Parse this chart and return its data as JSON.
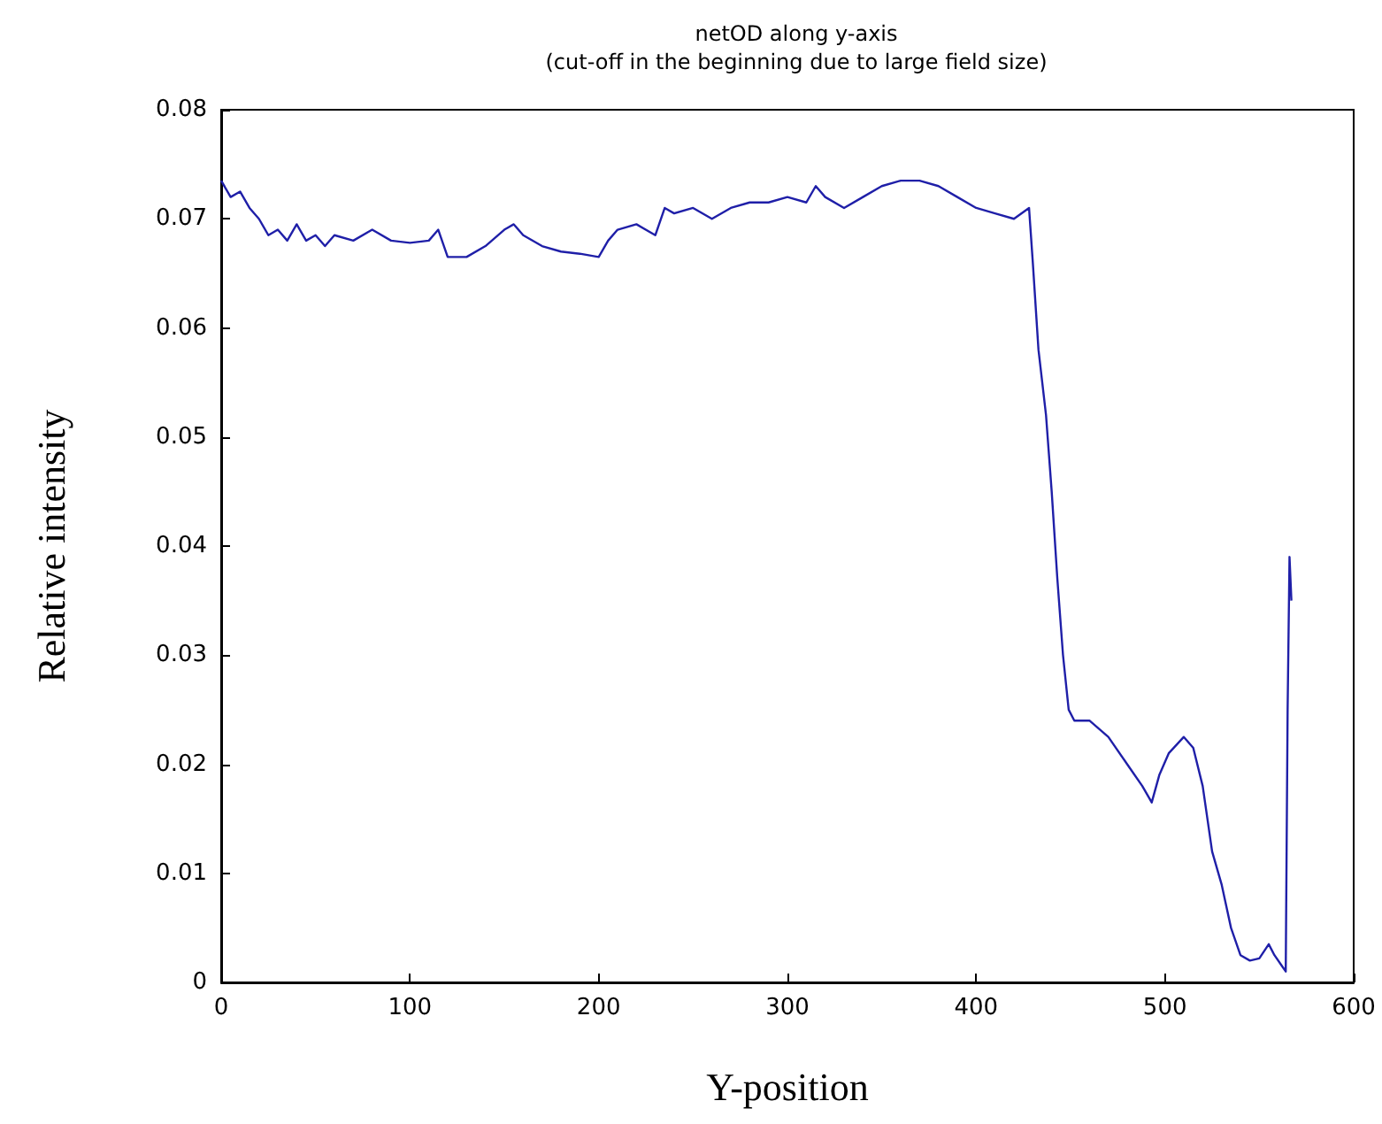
{
  "chart_data": {
    "type": "line",
    "title": "netOD along y-axis",
    "subtitle": "(cut-off in the beginning due to large field size)",
    "xlabel": "Y-position",
    "ylabel": "Relative intensity",
    "xlim": [
      0,
      600
    ],
    "xticks": [
      0,
      100,
      200,
      300,
      400,
      500,
      600
    ],
    "ylim": [
      0,
      0.08
    ],
    "yticks": [
      0,
      0.01,
      0.02,
      0.03,
      0.04,
      0.05,
      0.06,
      0.07,
      0.08
    ],
    "grid": false,
    "marker": "none",
    "line_style": "solid",
    "series": [
      {
        "color": "#1f1fa8",
        "x": [
          0,
          5,
          10,
          15,
          20,
          25,
          30,
          35,
          40,
          45,
          50,
          55,
          60,
          70,
          80,
          90,
          100,
          110,
          115,
          120,
          130,
          140,
          150,
          155,
          160,
          170,
          180,
          190,
          200,
          205,
          210,
          220,
          230,
          235,
          240,
          250,
          260,
          270,
          280,
          290,
          300,
          310,
          315,
          320,
          330,
          340,
          350,
          360,
          370,
          380,
          390,
          400,
          410,
          420,
          428,
          430,
          433,
          437,
          440,
          443,
          446,
          449,
          452,
          460,
          470,
          480,
          488,
          493,
          497,
          502,
          510,
          515,
          520,
          525,
          530,
          535,
          540,
          545,
          550,
          555,
          558,
          562,
          564,
          565,
          566,
          567
        ],
        "values": [
          0.0735,
          0.072,
          0.0725,
          0.071,
          0.07,
          0.0685,
          0.069,
          0.068,
          0.0695,
          0.068,
          0.0685,
          0.0675,
          0.0685,
          0.068,
          0.069,
          0.068,
          0.0678,
          0.068,
          0.069,
          0.0665,
          0.0665,
          0.0675,
          0.069,
          0.0695,
          0.0685,
          0.0675,
          0.067,
          0.0668,
          0.0665,
          0.068,
          0.069,
          0.0695,
          0.0685,
          0.071,
          0.0705,
          0.071,
          0.07,
          0.071,
          0.0715,
          0.0715,
          0.072,
          0.0715,
          0.073,
          0.072,
          0.071,
          0.072,
          0.073,
          0.0735,
          0.0735,
          0.073,
          0.072,
          0.071,
          0.0705,
          0.07,
          0.071,
          0.066,
          0.058,
          0.052,
          0.045,
          0.037,
          0.03,
          0.025,
          0.024,
          0.024,
          0.0225,
          0.02,
          0.018,
          0.0165,
          0.019,
          0.021,
          0.0225,
          0.0215,
          0.018,
          0.012,
          0.009,
          0.005,
          0.0025,
          0.002,
          0.0022,
          0.0035,
          0.0025,
          0.0015,
          0.001,
          0.025,
          0.039,
          0.035
        ]
      }
    ]
  }
}
